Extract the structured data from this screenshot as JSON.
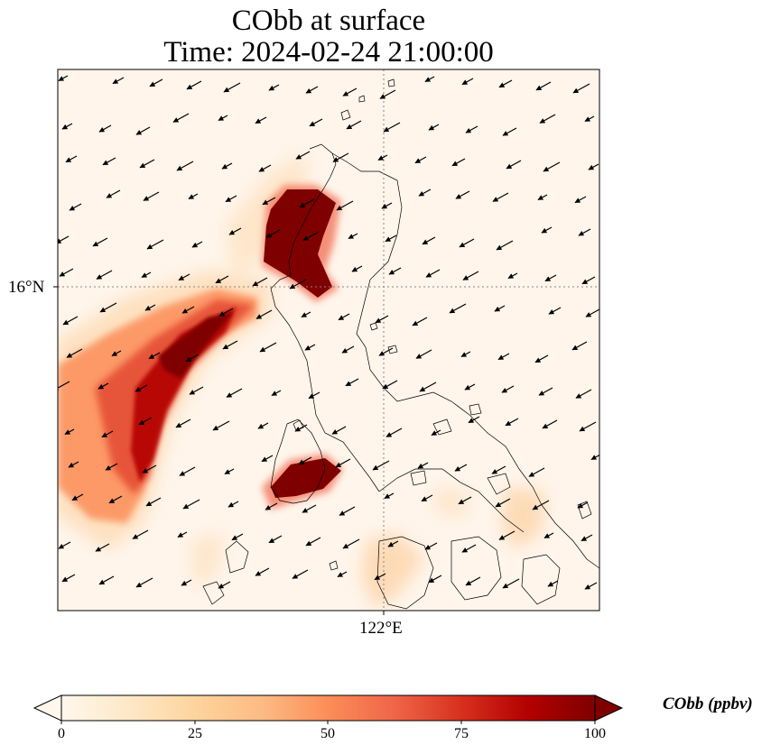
{
  "title": {
    "line1": "CObb at surface",
    "line2": "Time: 2024-02-24 21:00:00"
  },
  "axes": {
    "lat_tick": "16°N",
    "lon_tick": "122°E"
  },
  "colorbar": {
    "label": "CObb (ppbv)",
    "ticks": [
      "0",
      "25",
      "50",
      "75",
      "100"
    ],
    "colormap": "OrRd",
    "min": 0,
    "max": 100,
    "extend": "both"
  },
  "map": {
    "variable": "CObb",
    "units": "ppbv",
    "gridlines": "dotted",
    "overlays": [
      "coastlines",
      "wind-vectors"
    ],
    "plumes": [
      {
        "region": "northwest Luzon (Ilocos)",
        "peak_ppbv": 100
      },
      {
        "region": "offshore west of Luzon, South China Sea",
        "peak_ppbv": 95
      },
      {
        "region": "southwest Luzon / Mindoro area",
        "peak_ppbv": 100
      }
    ],
    "wind_direction": "northeasterly"
  }
}
